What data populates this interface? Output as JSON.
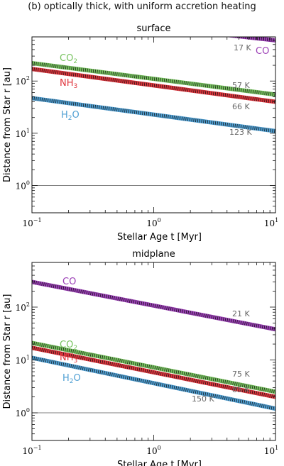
{
  "figure": {
    "title": "(b)  optically thick, with uniform accretion heating"
  },
  "colors": {
    "CO": "#9b3fb6",
    "CO2": "#77c35f",
    "NH3": "#e0353d",
    "H2O": "#4f9fd3",
    "hatch": "#111111",
    "reference_line": "#555555",
    "temp_label": "#666666"
  },
  "chart_data": [
    {
      "type": "line",
      "title": "surface",
      "xlabel": "Stellar Age  t  [Myr]",
      "ylabel": "Distance from Star  r  [au]",
      "xscale": "log",
      "yscale": "log",
      "xlim": [
        0.1,
        10
      ],
      "ylim": [
        0.3,
        700
      ],
      "x_ticks": [
        {
          "value": 0.1,
          "label": "10",
          "exp": "−1"
        },
        {
          "value": 1,
          "label": "10",
          "exp": "0"
        },
        {
          "value": 10,
          "label": "10",
          "exp": "1"
        }
      ],
      "y_ticks": [
        {
          "value": 1,
          "label": "10",
          "exp": "0"
        },
        {
          "value": 10,
          "label": "10",
          "exp": "1"
        },
        {
          "value": 100,
          "label": "10",
          "exp": "2"
        }
      ],
      "reference_line_y": 1,
      "series": [
        {
          "name": "CO",
          "label": "CO",
          "key": "CO",
          "temperature_label": "17 K",
          "x": [
            0.1,
            10
          ],
          "y": [
            2000,
            600
          ]
        },
        {
          "name": "CO2",
          "label": "CO",
          "label_sub": "2",
          "key": "CO2",
          "temperature_label": "57 K",
          "x": [
            0.1,
            10
          ],
          "y": [
            220,
            55
          ]
        },
        {
          "name": "NH3",
          "label": "NH",
          "label_sub": "3",
          "key": "NH3",
          "temperature_label": "66 K",
          "x": [
            0.1,
            10
          ],
          "y": [
            170,
            40
          ]
        },
        {
          "name": "H2O",
          "label": "H",
          "label_sub": "2",
          "label_tail": "O",
          "key": "H2O",
          "temperature_label": "123 K",
          "x": [
            0.1,
            10
          ],
          "y": [
            47,
            11
          ]
        }
      ]
    },
    {
      "type": "line",
      "title": "midplane",
      "xlabel": "Stellar Age  t  [Myr]",
      "ylabel": "Distance from Star  r  [au]",
      "xscale": "log",
      "yscale": "log",
      "xlim": [
        0.1,
        10
      ],
      "ylim": [
        0.3,
        700
      ],
      "x_ticks": [
        {
          "value": 0.1,
          "label": "10",
          "exp": "−1"
        },
        {
          "value": 1,
          "label": "10",
          "exp": "0"
        },
        {
          "value": 10,
          "label": "10",
          "exp": "1"
        }
      ],
      "y_ticks": [
        {
          "value": 1,
          "label": "10",
          "exp": "0"
        },
        {
          "value": 10,
          "label": "10",
          "exp": "1"
        },
        {
          "value": 100,
          "label": "10",
          "exp": "2"
        }
      ],
      "reference_line_y": 1,
      "series": [
        {
          "name": "CO",
          "label": "CO",
          "key": "CO",
          "temperature_label": "21 K",
          "x": [
            0.1,
            10
          ],
          "y": [
            300,
            38
          ]
        },
        {
          "name": "CO2",
          "label": "CO",
          "label_sub": "2",
          "key": "CO2",
          "temperature_label": "75 K",
          "x": [
            0.1,
            10
          ],
          "y": [
            21,
            2.5
          ]
        },
        {
          "name": "NH3",
          "label": "NH",
          "label_sub": "3",
          "key": "NH3",
          "temperature_label": "85 K",
          "x": [
            0.1,
            10
          ],
          "y": [
            17,
            2.0
          ]
        },
        {
          "name": "H2O",
          "label": "H",
          "label_sub": "2",
          "label_tail": "O",
          "key": "H2O",
          "temperature_label": "150 K",
          "x": [
            0.1,
            10
          ],
          "y": [
            11,
            1.2
          ]
        }
      ]
    }
  ]
}
